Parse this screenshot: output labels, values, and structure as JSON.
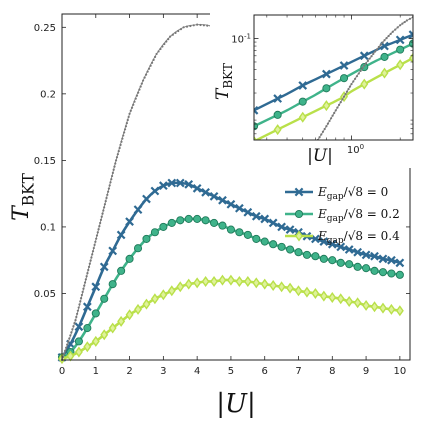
{
  "chart_data": [
    {
      "type": "line",
      "xlabel": "|U|",
      "ylabel": "T_BKT",
      "xlim": [
        0,
        10.3
      ],
      "ylim": [
        0,
        0.26
      ],
      "xticks": [
        0,
        1,
        2,
        3,
        4,
        5,
        6,
        7,
        8,
        9,
        10
      ],
      "yticks": [
        0.05,
        0.1,
        0.15,
        0.2,
        0.25
      ],
      "ytick_labels": [
        "0.05",
        "0.1",
        "0.15",
        "0.2",
        "0.25"
      ],
      "legend_position": "right",
      "series": [
        {
          "name": "E_gap/√8 = 0",
          "color": "#2f6a93",
          "marker": "x",
          "x": [
            0,
            0.25,
            0.5,
            0.75,
            1,
            1.25,
            1.5,
            1.75,
            2,
            2.25,
            2.5,
            2.75,
            3,
            3.25,
            3.5,
            3.75,
            4,
            4.25,
            4.5,
            4.75,
            5,
            5.25,
            5.5,
            5.75,
            6,
            6.25,
            6.5,
            6.75,
            7,
            7.25,
            7.5,
            7.75,
            8,
            8.25,
            8.5,
            8.75,
            9,
            9.25,
            9.5,
            9.75,
            10
          ],
          "y": [
            0.002,
            0.012,
            0.025,
            0.04,
            0.055,
            0.07,
            0.082,
            0.094,
            0.104,
            0.113,
            0.121,
            0.127,
            0.131,
            0.133,
            0.133,
            0.132,
            0.129,
            0.126,
            0.123,
            0.12,
            0.117,
            0.114,
            0.111,
            0.108,
            0.106,
            0.103,
            0.1,
            0.098,
            0.096,
            0.093,
            0.091,
            0.089,
            0.087,
            0.085,
            0.083,
            0.081,
            0.079,
            0.078,
            0.076,
            0.075,
            0.073
          ]
        },
        {
          "name": "E_gap/√8 = 0.2",
          "color": "#3fb38a",
          "marker": "o",
          "x": [
            0,
            0.25,
            0.5,
            0.75,
            1,
            1.25,
            1.5,
            1.75,
            2,
            2.25,
            2.5,
            2.75,
            3,
            3.25,
            3.5,
            3.75,
            4,
            4.25,
            4.5,
            4.75,
            5,
            5.25,
            5.5,
            5.75,
            6,
            6.25,
            6.5,
            6.75,
            7,
            7.25,
            7.5,
            7.75,
            8,
            8.25,
            8.5,
            8.75,
            9,
            9.25,
            9.5,
            9.75,
            10
          ],
          "y": [
            0.002,
            0.006,
            0.014,
            0.024,
            0.035,
            0.046,
            0.057,
            0.067,
            0.076,
            0.084,
            0.091,
            0.096,
            0.1,
            0.103,
            0.105,
            0.106,
            0.106,
            0.105,
            0.103,
            0.101,
            0.098,
            0.096,
            0.094,
            0.091,
            0.089,
            0.087,
            0.085,
            0.083,
            0.081,
            0.079,
            0.078,
            0.076,
            0.075,
            0.073,
            0.072,
            0.07,
            0.069,
            0.067,
            0.066,
            0.065,
            0.064
          ]
        },
        {
          "name": "E_gap/√8 = 0.4",
          "color": "#b9e04a",
          "marker": "d",
          "x": [
            0,
            0.25,
            0.5,
            0.75,
            1,
            1.25,
            1.5,
            1.75,
            2,
            2.25,
            2.5,
            2.75,
            3,
            3.25,
            3.5,
            3.75,
            4,
            4.25,
            4.5,
            4.75,
            5,
            5.25,
            5.5,
            5.75,
            6,
            6.25,
            6.5,
            6.75,
            7,
            7.25,
            7.5,
            7.75,
            8,
            8.25,
            8.5,
            8.75,
            9,
            9.25,
            9.5,
            9.75,
            10
          ],
          "y": [
            0.001,
            0.003,
            0.006,
            0.01,
            0.014,
            0.019,
            0.024,
            0.029,
            0.034,
            0.038,
            0.042,
            0.046,
            0.049,
            0.052,
            0.055,
            0.057,
            0.058,
            0.059,
            0.059,
            0.06,
            0.06,
            0.059,
            0.059,
            0.058,
            0.057,
            0.056,
            0.055,
            0.054,
            0.052,
            0.051,
            0.05,
            0.048,
            0.047,
            0.046,
            0.044,
            0.043,
            0.041,
            0.04,
            0.039,
            0.038,
            0.037
          ]
        },
        {
          "name": "",
          "color": "#888888",
          "marker": "dot",
          "x": [
            0,
            0.4,
            0.8,
            1.2,
            1.6,
            2.0,
            2.4,
            2.8,
            3.2,
            3.6,
            4.0,
            4.4,
            4.8,
            5.2,
            5.6,
            6.0
          ],
          "y": [
            0,
            0.03,
            0.07,
            0.11,
            0.15,
            0.185,
            0.21,
            0.23,
            0.243,
            0.25,
            0.252,
            0.251,
            0.244,
            0.23,
            0.21,
            0.188
          ]
        }
      ]
    },
    {
      "type": "line",
      "xlabel": "|U|",
      "ylabel": "T_BKT",
      "xscale": "log",
      "yscale": "log",
      "xlim": [
        0.25,
        2.4
      ],
      "ylim": [
        0.005,
        0.2
      ],
      "xticks": [
        1
      ],
      "xtick_labels": [
        "10^0"
      ],
      "yticks": [
        0.1
      ],
      "ytick_labels": [
        "10^-1"
      ],
      "series": [
        {
          "name": "E_gap/√8 = 0",
          "color": "#2f6a93",
          "marker": "x",
          "x": [
            0.25,
            0.3,
            0.35,
            0.4,
            0.5,
            0.6,
            0.7,
            0.8,
            0.9,
            1.0,
            1.2,
            1.4,
            1.6,
            1.8,
            2.0,
            2.2,
            2.4
          ],
          "y": [
            0.012,
            0.0145,
            0.017,
            0.0195,
            0.025,
            0.03,
            0.035,
            0.04,
            0.045,
            0.05,
            0.06,
            0.07,
            0.08,
            0.088,
            0.096,
            0.104,
            0.112
          ]
        },
        {
          "name": "E_gap/√8 = 0.2",
          "color": "#3fb38a",
          "marker": "o",
          "x": [
            0.25,
            0.3,
            0.35,
            0.4,
            0.5,
            0.6,
            0.7,
            0.8,
            0.9,
            1.0,
            1.2,
            1.4,
            1.6,
            1.8,
            2.0,
            2.2,
            2.4
          ],
          "y": [
            0.0075,
            0.009,
            0.0105,
            0.012,
            0.0155,
            0.019,
            0.023,
            0.027,
            0.031,
            0.035,
            0.043,
            0.051,
            0.058,
            0.065,
            0.072,
            0.079,
            0.086
          ]
        },
        {
          "name": "E_gap/√8 = 0.4",
          "color": "#b9e04a",
          "marker": "d",
          "x": [
            0.25,
            0.3,
            0.35,
            0.4,
            0.5,
            0.6,
            0.7,
            0.8,
            0.9,
            1.0,
            1.2,
            1.4,
            1.6,
            1.8,
            2.0,
            2.2,
            2.4
          ],
          "y": [
            0.0048,
            0.0058,
            0.0068,
            0.0078,
            0.0098,
            0.0118,
            0.0138,
            0.0158,
            0.018,
            0.021,
            0.026,
            0.031,
            0.036,
            0.041,
            0.046,
            0.051,
            0.056
          ]
        },
        {
          "name": "",
          "color": "#888888",
          "marker": "dot",
          "x": [
            0.62,
            0.7,
            0.8,
            0.9,
            1.0,
            1.2,
            1.4,
            1.6,
            1.8,
            2.0,
            2.2,
            2.4
          ],
          "y": [
            0.005,
            0.0075,
            0.012,
            0.018,
            0.026,
            0.045,
            0.068,
            0.095,
            0.122,
            0.148,
            0.17,
            0.188
          ]
        }
      ]
    }
  ]
}
